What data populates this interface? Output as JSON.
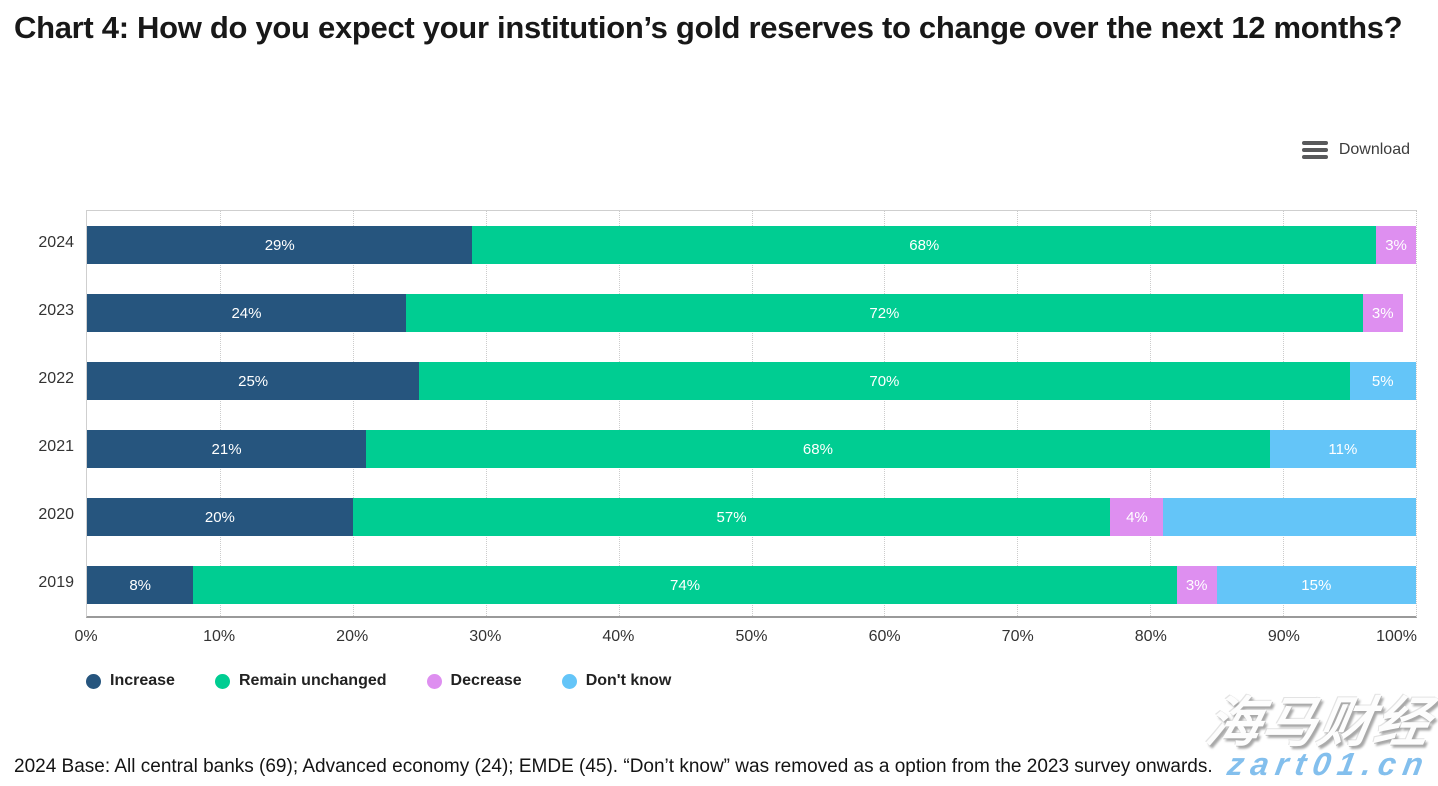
{
  "header": {
    "title": "Chart 4: How do you expect your institution’s gold reserves to change over the next 12 months?"
  },
  "toolbar": {
    "download_label": "Download",
    "menu_icon": "hamburger-icon"
  },
  "chart_data": {
    "type": "bar",
    "subtype": "horizontal-stacked",
    "title": "Chart 4: How do you expect your institution’s gold reserves to change over the next 12 months?",
    "categories": [
      "2024",
      "2023",
      "2022",
      "2021",
      "2020",
      "2019"
    ],
    "series": [
      {
        "name": "Increase",
        "color": "#26557e",
        "values": [
          29,
          24,
          25,
          21,
          20,
          8
        ],
        "data_labels": [
          "29%",
          "24%",
          "25%",
          "21%",
          "20%",
          "8%"
        ]
      },
      {
        "name": "Remain unchanged",
        "color": "#00cd92",
        "values": [
          68,
          72,
          70,
          68,
          57,
          74
        ],
        "data_labels": [
          "68%",
          "72%",
          "70%",
          "68%",
          "57%",
          "74%"
        ]
      },
      {
        "name": "Decrease",
        "color": "#de8ff0",
        "values": [
          3,
          3,
          0,
          0,
          4,
          3
        ],
        "data_labels": [
          "3%",
          "3%",
          "",
          "",
          "4%",
          "3%"
        ]
      },
      {
        "name": "Don't know",
        "color": "#64c5f8",
        "values": [
          0,
          0,
          5,
          11,
          19,
          15
        ],
        "data_labels": [
          "",
          "",
          "5%",
          "11%",
          "",
          "15%"
        ]
      }
    ],
    "x_tick_labels": [
      "0%",
      "10%",
      "20%",
      "30%",
      "40%",
      "50%",
      "60%",
      "70%",
      "80%",
      "90%",
      "100%"
    ],
    "xlim": [
      0,
      100
    ],
    "grid": "vertical-dotted",
    "legend_position": "bottom",
    "legend": [
      "Increase",
      "Remain unchanged",
      "Decrease",
      "Don't know"
    ]
  },
  "footer": {
    "note": "2024 Base: All central banks (69); Advanced economy (24); EMDE (45). “Don’t know” was removed as a option from the 2023 survey onwards."
  },
  "watermark": {
    "brand": "海马财经",
    "domain": "zart01.cn"
  },
  "colors": {
    "increase": "#26557e",
    "remain_unchanged": "#00cd92",
    "decrease": "#de8ff0",
    "dont_know": "#64c5f8",
    "grid": "#cccccc",
    "axis_text": "#333333"
  }
}
